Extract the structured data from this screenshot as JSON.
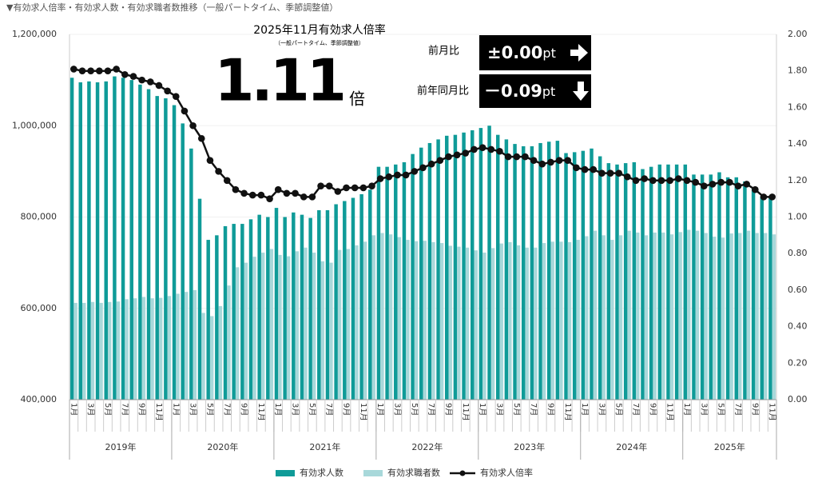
{
  "chart_data": {
    "type": "bar-line",
    "title": "▼有効求人倍率・有効求人数・有効求職者数推移（一般パートタイム、季節調整値）",
    "headline": {
      "title": "2025年11月有効求人倍率",
      "subtitle": "（一般パートタイム、季節調整値）",
      "value": "1.11",
      "unit": "倍",
      "mom": {
        "label": "前月比",
        "value": "±0.00",
        "unit": "pt"
      },
      "yoy": {
        "label": "前年同月比",
        "value": "－0.09",
        "unit": "pt"
      }
    },
    "categories": [
      "1月",
      null,
      "3月",
      null,
      "5月",
      null,
      "7月",
      null,
      "9月",
      null,
      "11月",
      null,
      "1月",
      null,
      "3月",
      null,
      "5月",
      null,
      "7月",
      null,
      "9月",
      null,
      "11月",
      null,
      "1月",
      null,
      "3月",
      null,
      "5月",
      null,
      "7月",
      null,
      "9月",
      null,
      "11月",
      null,
      "1月",
      null,
      "3月",
      null,
      "5月",
      null,
      "7月",
      null,
      "9月",
      null,
      "11月",
      null,
      "1月",
      null,
      "3月",
      null,
      "5月",
      null,
      "7月",
      null,
      "9月",
      null,
      "11月",
      null,
      "1月",
      null,
      "3月",
      null,
      "5月",
      null,
      "7月",
      null,
      "9月",
      null,
      "11月",
      null,
      "1月",
      null,
      "3月",
      null,
      "5月",
      null,
      "7月",
      null,
      "9月",
      null,
      "11月"
    ],
    "years": [
      "2019年",
      "2020年",
      "2021年",
      "2022年",
      "2023年",
      "2024年",
      "2025年"
    ],
    "series": [
      {
        "name": "有効求人数",
        "type": "bar",
        "color": "#0f9b98",
        "values": [
          1105000,
          1095000,
          1097000,
          1095000,
          1097000,
          1108000,
          1105000,
          1100000,
          1090000,
          1080000,
          1065000,
          1060000,
          1045000,
          1005000,
          950000,
          840000,
          750000,
          760000,
          780000,
          785000,
          785000,
          795000,
          805000,
          800000,
          820000,
          800000,
          810000,
          805000,
          798000,
          815000,
          815000,
          828000,
          835000,
          842000,
          850000,
          860000,
          910000,
          910000,
          915000,
          920000,
          938000,
          952000,
          962000,
          970000,
          978000,
          980000,
          985000,
          990000,
          995000,
          1000000,
          980000,
          970000,
          960000,
          955000,
          955000,
          962000,
          965000,
          967000,
          940000,
          942000,
          945000,
          950000,
          933000,
          918000,
          915000,
          918000,
          920000,
          905000,
          910000,
          915000,
          915000,
          915000,
          915000,
          893000,
          893000,
          893000,
          898000,
          887000,
          887000,
          878000,
          862000,
          845000,
          843000
        ]
      },
      {
        "name": "有効求職者数",
        "type": "bar",
        "color": "#a8d8da",
        "values": [
          612000,
          612000,
          614000,
          612000,
          614000,
          615000,
          620000,
          622000,
          625000,
          622000,
          623000,
          627000,
          632000,
          636000,
          640000,
          590000,
          583000,
          605000,
          650000,
          690000,
          700000,
          713000,
          722000,
          730000,
          717000,
          714000,
          725000,
          733000,
          722000,
          703000,
          700000,
          728000,
          730000,
          738000,
          746000,
          760000,
          765000,
          762000,
          756000,
          750000,
          747000,
          748000,
          745000,
          743000,
          737000,
          735000,
          733000,
          727000,
          722000,
          732000,
          742000,
          745000,
          738000,
          733000,
          733000,
          743000,
          746000,
          746000,
          745000,
          750000,
          758000,
          770000,
          760000,
          750000,
          760000,
          770000,
          766000,
          760000,
          766000,
          766000,
          762000,
          767000,
          772000,
          770000,
          765000,
          757000,
          755000,
          764000,
          765000,
          770000,
          765000,
          765000,
          762000
        ]
      },
      {
        "name": "有効求人倍率",
        "type": "line",
        "axis": "y2",
        "color": "#111111",
        "values": [
          1.81,
          1.8,
          1.8,
          1.8,
          1.8,
          1.81,
          1.78,
          1.77,
          1.75,
          1.74,
          1.72,
          1.69,
          1.66,
          1.58,
          1.5,
          1.43,
          1.31,
          1.25,
          1.2,
          1.15,
          1.13,
          1.12,
          1.12,
          1.1,
          1.15,
          1.13,
          1.13,
          1.11,
          1.11,
          1.17,
          1.17,
          1.14,
          1.16,
          1.16,
          1.16,
          1.17,
          1.21,
          1.22,
          1.23,
          1.23,
          1.25,
          1.27,
          1.29,
          1.31,
          1.33,
          1.34,
          1.35,
          1.37,
          1.38,
          1.37,
          1.36,
          1.33,
          1.33,
          1.33,
          1.31,
          1.29,
          1.3,
          1.31,
          1.31,
          1.27,
          1.26,
          1.26,
          1.24,
          1.24,
          1.24,
          1.22,
          1.2,
          1.21,
          1.2,
          1.2,
          1.2,
          1.21,
          1.2,
          1.19,
          1.17,
          1.18,
          1.19,
          1.19,
          1.17,
          1.18,
          1.15,
          1.11,
          1.11
        ]
      }
    ],
    "ylim": [
      400000,
      1200000
    ],
    "yticks": [
      {
        "value": 400000,
        "label": "400,000"
      },
      {
        "value": 600000,
        "label": "600,000"
      },
      {
        "value": 800000,
        "label": "800,000"
      },
      {
        "value": 1000000,
        "label": "1,000,000"
      },
      {
        "value": 1200000,
        "label": "1,200,000"
      }
    ],
    "y2lim": [
      0,
      2
    ],
    "y2ticks": [
      {
        "value": 0,
        "label": "0.00"
      },
      {
        "value": 0.2,
        "label": "0.20"
      },
      {
        "value": 0.4,
        "label": "0.40"
      },
      {
        "value": 0.6,
        "label": "0.60"
      },
      {
        "value": 0.8,
        "label": "0.80"
      },
      {
        "value": 1,
        "label": "1.00"
      },
      {
        "value": 1.2,
        "label": "1.20"
      },
      {
        "value": 1.4,
        "label": "1.40"
      },
      {
        "value": 1.6,
        "label": "1.60"
      },
      {
        "value": 1.8,
        "label": "1.80"
      },
      {
        "value": 2,
        "label": "2.00"
      }
    ],
    "grid": true,
    "legend": "bottom"
  }
}
